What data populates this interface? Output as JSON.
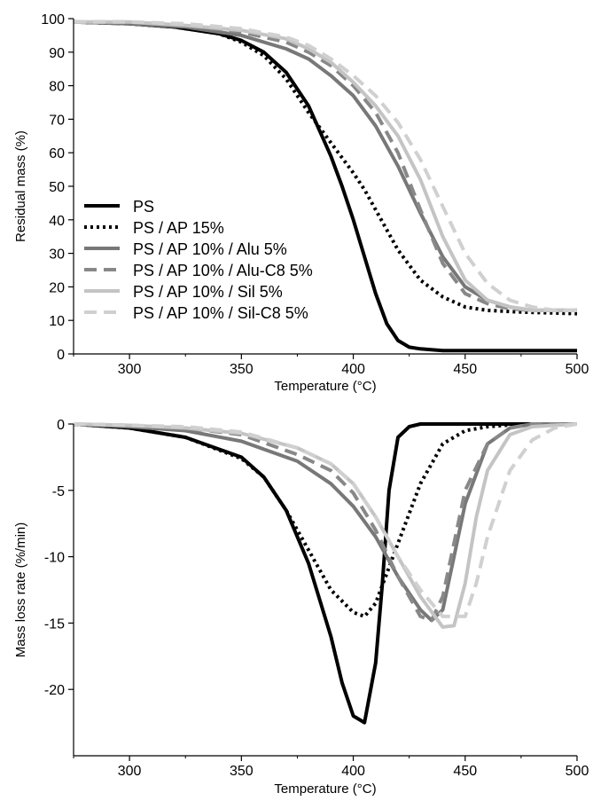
{
  "chart_data": [
    {
      "type": "line",
      "xlabel": "Temperature (°C)",
      "ylabel": "Residual mass (%)",
      "xlim": [
        275,
        500
      ],
      "ylim": [
        0,
        100
      ],
      "xticks": [
        300,
        350,
        400,
        450,
        500
      ],
      "yticks": [
        0,
        10,
        20,
        30,
        40,
        50,
        60,
        70,
        80,
        90,
        100
      ],
      "legend": "lower-left",
      "grid": false,
      "series": [
        {
          "name": "PS",
          "color": "#000000",
          "style": "solid",
          "x": [
            275,
            300,
            320,
            340,
            350,
            360,
            370,
            380,
            390,
            395,
            400,
            405,
            410,
            415,
            420,
            425,
            430,
            440,
            450,
            475,
            500
          ],
          "y": [
            99,
            98.5,
            97.5,
            95.5,
            93.5,
            90,
            84,
            74,
            59,
            50,
            40,
            29,
            18,
            9,
            4,
            2,
            1.5,
            1,
            1,
            1,
            1
          ]
        },
        {
          "name": "PS / AP 15%",
          "color": "#000000",
          "style": "dotted",
          "x": [
            275,
            300,
            320,
            340,
            350,
            360,
            370,
            380,
            390,
            400,
            405,
            410,
            420,
            430,
            440,
            450,
            460,
            475,
            500
          ],
          "y": [
            99,
            98.5,
            97.5,
            95.5,
            93,
            89,
            82,
            72,
            63,
            54,
            49,
            43,
            31,
            22,
            17,
            14,
            13,
            12.5,
            12
          ]
        },
        {
          "name": "PS / AP 10% / Alu 5%",
          "color": "#787878",
          "style": "solid",
          "x": [
            275,
            300,
            325,
            350,
            370,
            380,
            390,
            400,
            410,
            420,
            430,
            440,
            450,
            460,
            470,
            480,
            500
          ],
          "y": [
            99,
            98.5,
            97.5,
            95,
            91,
            88,
            83,
            77,
            68,
            56,
            42,
            29,
            20,
            16,
            14,
            13,
            13
          ]
        },
        {
          "name": "PS / AP 10% / Alu-C8 5%",
          "color": "#888888",
          "style": "dashed",
          "x": [
            275,
            300,
            325,
            350,
            370,
            380,
            390,
            400,
            410,
            420,
            430,
            440,
            450,
            460,
            470,
            480,
            500
          ],
          "y": [
            99,
            99,
            98,
            96,
            93,
            90,
            86,
            80,
            72,
            60,
            43,
            27,
            18,
            15,
            13.5,
            13,
            13
          ]
        },
        {
          "name": "PS / AP 10% / Sil 5%",
          "color": "#c4c4c4",
          "style": "solid",
          "x": [
            275,
            300,
            325,
            350,
            370,
            380,
            390,
            400,
            410,
            420,
            430,
            440,
            450,
            460,
            470,
            480,
            500
          ],
          "y": [
            99,
            99,
            98,
            96.5,
            94,
            91,
            87,
            81,
            74,
            65,
            52,
            35,
            22,
            16,
            14,
            13,
            13
          ]
        },
        {
          "name": "PS / AP 10% / Sil-C8 5%",
          "color": "#d0d0d0",
          "style": "dashed",
          "x": [
            275,
            300,
            325,
            350,
            370,
            380,
            390,
            400,
            410,
            420,
            430,
            440,
            450,
            460,
            470,
            480,
            490,
            500
          ],
          "y": [
            99,
            99,
            98.5,
            97,
            94.5,
            92,
            88,
            83,
            77,
            69,
            58,
            44,
            30,
            21,
            16,
            14,
            13,
            13
          ]
        }
      ]
    },
    {
      "type": "line",
      "xlabel": "Temperature (°C)",
      "ylabel": "Mass loss rate (%/min)",
      "xlim": [
        275,
        500
      ],
      "ylim": [
        -25,
        0
      ],
      "xticks": [
        300,
        350,
        400,
        450,
        500
      ],
      "yticks": [
        0,
        -5,
        -10,
        -15,
        -20
      ],
      "grid": false,
      "series": [
        {
          "name": "PS",
          "color": "#000000",
          "style": "solid",
          "x": [
            275,
            300,
            325,
            350,
            360,
            370,
            380,
            390,
            395,
            400,
            405,
            410,
            413,
            416,
            420,
            425,
            430,
            450,
            500
          ],
          "y": [
            0,
            -0.3,
            -1,
            -2.5,
            -4,
            -6.5,
            -10.5,
            -16,
            -19.5,
            -22,
            -22.5,
            -18,
            -12,
            -5,
            -1,
            -0.2,
            0,
            0,
            0
          ]
        },
        {
          "name": "PS / AP 15%",
          "color": "#000000",
          "style": "dotted",
          "x": [
            275,
            300,
            325,
            350,
            360,
            370,
            380,
            390,
            400,
            405,
            410,
            420,
            430,
            440,
            450,
            460,
            475,
            500
          ],
          "y": [
            0,
            -0.3,
            -1,
            -2.6,
            -4,
            -6.5,
            -9.5,
            -12.5,
            -14.2,
            -14.5,
            -13.5,
            -9,
            -4.5,
            -1.5,
            -0.5,
            -0.2,
            0,
            0
          ]
        },
        {
          "name": "PS / AP 10% / Alu 5%",
          "color": "#787878",
          "style": "solid",
          "x": [
            275,
            300,
            325,
            350,
            375,
            390,
            400,
            410,
            420,
            430,
            435,
            440,
            445,
            450,
            460,
            470,
            480,
            500
          ],
          "y": [
            0,
            -0.2,
            -0.5,
            -1.3,
            -2.8,
            -4.5,
            -6.2,
            -8.5,
            -11.5,
            -14,
            -14.8,
            -14,
            -10,
            -6,
            -1.5,
            -0.3,
            0,
            0
          ]
        },
        {
          "name": "PS / AP 10% / Alu-C8 5%",
          "color": "#888888",
          "style": "dashed",
          "x": [
            275,
            300,
            325,
            350,
            375,
            390,
            400,
            410,
            420,
            430,
            435,
            440,
            445,
            450,
            460,
            470,
            480,
            500
          ],
          "y": [
            0,
            -0.1,
            -0.3,
            -0.8,
            -2.3,
            -3.5,
            -5.2,
            -8,
            -11.5,
            -14.5,
            -14.8,
            -13,
            -9,
            -5,
            -1.5,
            -0.3,
            0,
            0
          ]
        },
        {
          "name": "PS / AP 10% / Sil 5%",
          "color": "#c4c4c4",
          "style": "solid",
          "x": [
            275,
            300,
            325,
            350,
            375,
            390,
            400,
            410,
            420,
            430,
            440,
            445,
            450,
            455,
            460,
            470,
            480,
            500
          ],
          "y": [
            0,
            -0.1,
            -0.3,
            -0.7,
            -1.8,
            -3,
            -4.5,
            -7,
            -10,
            -13,
            -15.3,
            -15.2,
            -12,
            -7,
            -3.5,
            -0.8,
            -0.2,
            0
          ]
        },
        {
          "name": "PS / AP 10% / Sil-C8 5%",
          "color": "#d0d0d0",
          "style": "dashed",
          "x": [
            275,
            300,
            325,
            350,
            375,
            390,
            400,
            410,
            420,
            430,
            440,
            450,
            455,
            460,
            470,
            480,
            490,
            500
          ],
          "y": [
            0,
            -0.1,
            -0.2,
            -0.6,
            -1.8,
            -3,
            -4.5,
            -7,
            -10,
            -12.5,
            -14.5,
            -14.5,
            -12,
            -8.5,
            -3.5,
            -1.2,
            -0.3,
            0
          ]
        }
      ]
    }
  ]
}
